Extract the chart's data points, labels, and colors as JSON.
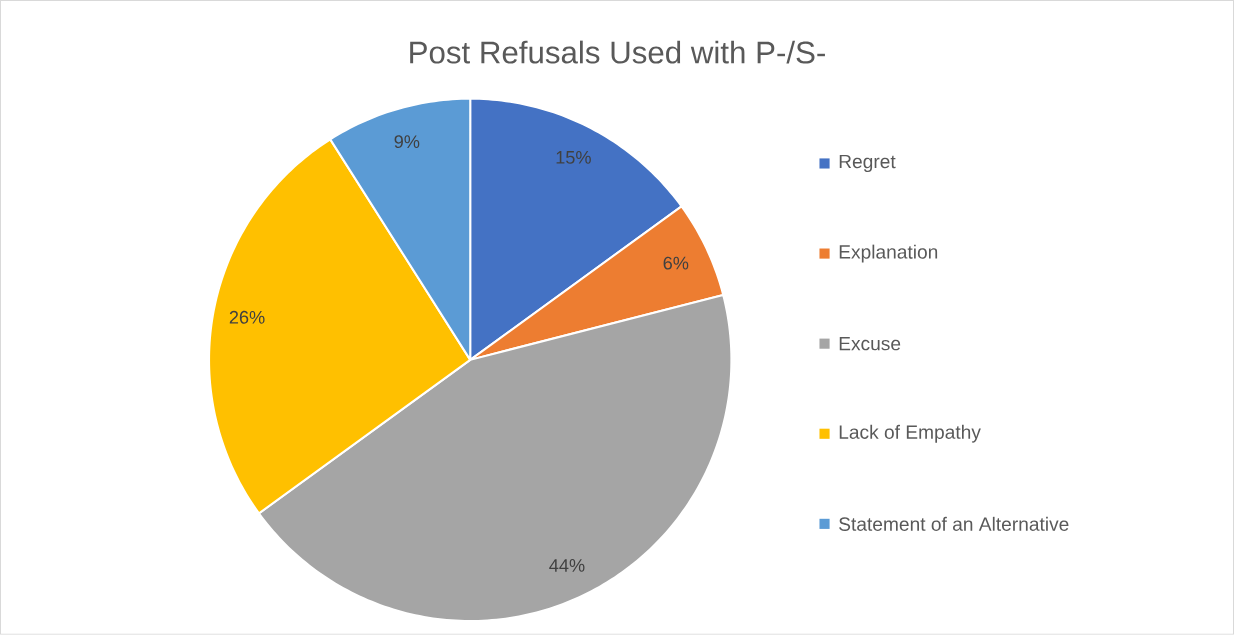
{
  "chart_data": {
    "type": "pie",
    "title": "Post Refusals Used with P-/S-",
    "categories": [
      "Regret",
      "Explanation",
      "Excuse",
      "Lack of Empathy",
      "Statement of an Alternative"
    ],
    "values": [
      15,
      6,
      44,
      26,
      9
    ],
    "colors": [
      "#4472c4",
      "#ed7d31",
      "#a5a5a5",
      "#ffc000",
      "#5b9bd5"
    ],
    "value_labels": [
      "15%",
      "6%",
      "44%",
      "26%",
      "9%"
    ],
    "legend": "right"
  }
}
